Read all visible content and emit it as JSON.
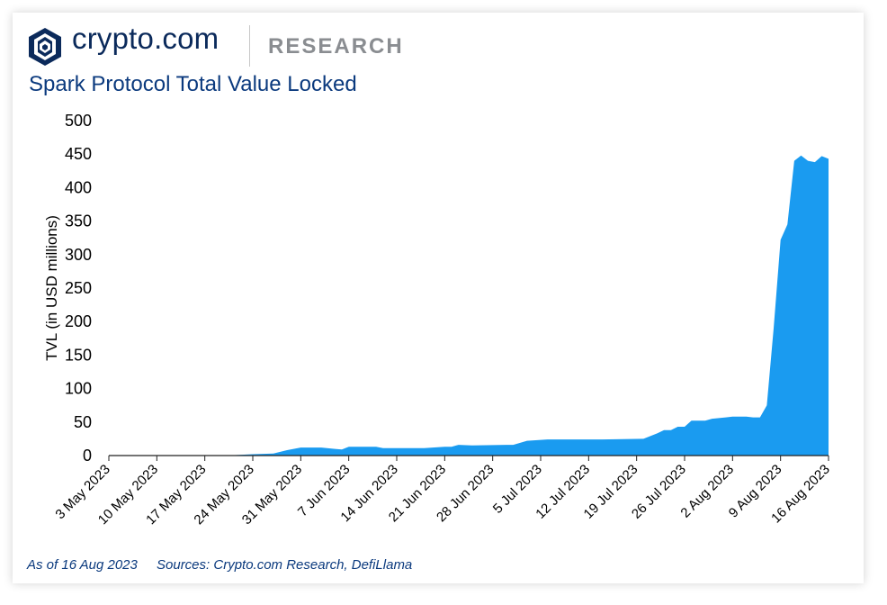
{
  "header": {
    "brand": "crypto.com",
    "section": "RESEARCH",
    "title": "Spark Protocol Total Value Locked"
  },
  "footer": {
    "as_of": "As of 16 Aug 2023",
    "sources": "Sources: Crypto.com Research, DefiLlama"
  },
  "colors": {
    "area": "#1a9bf0",
    "brand": "#0b2a5b",
    "title": "#0b3a7e"
  },
  "icons": {
    "logo": "crypto-com-lion-shield-icon"
  },
  "chart_data": {
    "type": "area",
    "title": "Spark Protocol Total Value Locked",
    "xlabel": "",
    "ylabel": "TVL (in USD millions)",
    "ylim": [
      0,
      500
    ],
    "yticks": [
      "0",
      "50",
      "100",
      "150",
      "200",
      "250",
      "300",
      "350",
      "400",
      "450",
      "500"
    ],
    "xticks": [
      "3 May 2023",
      "10 May 2023",
      "17 May 2023",
      "24 May 2023",
      "31 May 2023",
      "7 Jun 2023",
      "14 Jun 2023",
      "21 Jun 2023",
      "28 Jun 2023",
      "5 Jul 2023",
      "12 Jul 2023",
      "19 Jul 2023",
      "26 Jul 2023",
      "2 Aug 2023",
      "9 Aug 2023",
      "16 Aug 2023"
    ],
    "grid": false,
    "legend": "none",
    "series": [
      {
        "x": [
          "3 May 2023",
          "20 May 2023",
          "24 May 2023",
          "27 May 2023",
          "29 May 2023",
          "31 May 2023",
          "3 Jun 2023",
          "5 Jun 2023",
          "6 Jun 2023",
          "7 Jun 2023",
          "11 Jun 2023",
          "12 Jun 2023",
          "18 Jun 2023",
          "21 Jun 2023",
          "22 Jun 2023",
          "23 Jun 2023",
          "25 Jun 2023",
          "30 Jun 2023",
          "1 Jul 2023",
          "3 Jul 2023",
          "6 Jul 2023",
          "13 Jul 2023",
          "14 Jul 2023",
          "20 Jul 2023",
          "22 Jul 2023",
          "23 Jul 2023",
          "24 Jul 2023",
          "25 Jul 2023",
          "26 Jul 2023",
          "27 Jul 2023",
          "29 Jul 2023",
          "30 Jul 2023",
          "1 Aug 2023",
          "2 Aug 2023",
          "4 Aug 2023",
          "5 Aug 2023",
          "6 Aug 2023",
          "7 Aug 2023",
          "8 Aug 2023",
          "9 Aug 2023",
          "10 Aug 2023",
          "11 Aug 2023",
          "12 Aug 2023",
          "13 Aug 2023",
          "14 Aug 2023",
          "15 Aug 2023",
          "16 Aug 2023"
        ],
        "values": [
          0,
          0,
          2,
          3,
          8,
          12,
          12,
          10,
          9,
          13,
          13,
          11,
          11,
          13,
          13,
          16,
          15,
          16,
          16,
          22,
          24,
          24,
          24,
          25,
          33,
          38,
          38,
          43,
          43,
          52,
          52,
          55,
          57,
          58,
          58,
          57,
          57,
          75,
          190,
          322,
          345,
          440,
          448,
          440,
          438,
          447,
          443
        ]
      }
    ]
  }
}
